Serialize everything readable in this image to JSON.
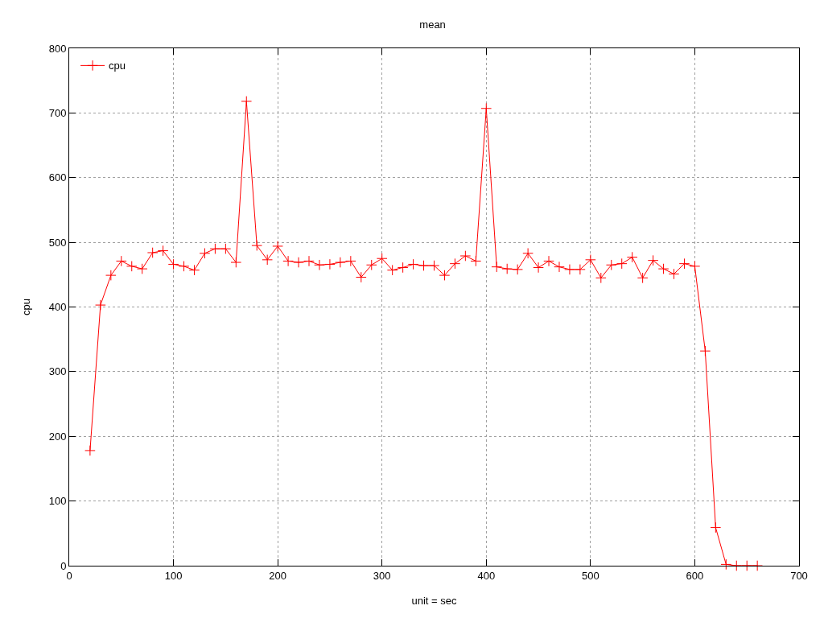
{
  "chart_data": {
    "type": "line",
    "title": "mean",
    "xlabel": "unit = sec",
    "ylabel": "cpu",
    "x": [
      20,
      30,
      40,
      50,
      60,
      70,
      80,
      90,
      100,
      110,
      120,
      130,
      140,
      150,
      160,
      170,
      180,
      190,
      200,
      210,
      220,
      230,
      240,
      250,
      260,
      270,
      280,
      290,
      300,
      310,
      320,
      330,
      340,
      350,
      360,
      370,
      380,
      390,
      400,
      410,
      420,
      430,
      440,
      450,
      460,
      470,
      480,
      490,
      500,
      510,
      520,
      530,
      540,
      550,
      560,
      570,
      580,
      590,
      600,
      610,
      620,
      630,
      640,
      650,
      660
    ],
    "series": [
      {
        "name": "cpu",
        "color": "#ff0000",
        "values": [
          178,
          403,
          449,
          471,
          463,
          459,
          484,
          487,
          466,
          463,
          457,
          483,
          490,
          490,
          469,
          718,
          495,
          473,
          494,
          471,
          469,
          471,
          465,
          466,
          469,
          471,
          446,
          465,
          475,
          457,
          461,
          466,
          464,
          464,
          449,
          467,
          479,
          471,
          707,
          462,
          459,
          458,
          483,
          461,
          471,
          462,
          458,
          458,
          473,
          445,
          465,
          467,
          477,
          445,
          472,
          459,
          451,
          467,
          463,
          332,
          59,
          2,
          0,
          0,
          0
        ]
      }
    ],
    "xlim": [
      0,
      700
    ],
    "xticks": [
      0,
      100,
      200,
      300,
      400,
      500,
      600,
      700
    ],
    "ylim": [
      0,
      800
    ],
    "yticks": [
      0,
      100,
      200,
      300,
      400,
      500,
      600,
      700,
      800
    ],
    "grid": true,
    "legend": "top left",
    "marker": "cross",
    "line_style": "solid"
  }
}
